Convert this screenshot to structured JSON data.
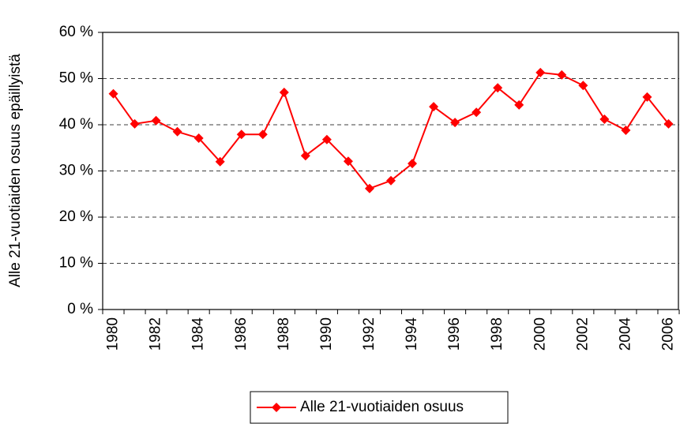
{
  "chart_data": {
    "type": "line",
    "y_label": "Alle 21-vuotiaiden osuus epäillyistä",
    "categories": [
      "1980",
      null,
      "1982",
      null,
      "1984",
      null,
      "1986",
      null,
      "1988",
      null,
      "1990",
      null,
      "1992",
      null,
      "1994",
      null,
      "1996",
      null,
      "1998",
      null,
      "2000",
      null,
      "2002",
      null,
      "2004",
      null,
      "2006"
    ],
    "series": [
      {
        "name": "Alle 21-vuotiaiden osuus",
        "color": "#ff0000",
        "values": [
          46.7,
          40.2,
          40.9,
          38.5,
          37.1,
          32.0,
          37.9,
          37.9,
          47.0,
          33.3,
          36.8,
          32.1,
          26.2,
          27.9,
          31.6,
          43.9,
          40.5,
          42.7,
          48.0,
          44.3,
          51.3,
          50.8,
          48.5,
          41.2,
          38.8,
          46.0,
          40.2
        ]
      }
    ],
    "ylim": [
      0,
      60
    ],
    "yticks": [
      {
        "value": 0,
        "label": "0 %"
      },
      {
        "value": 10,
        "label": "10 %"
      },
      {
        "value": 20,
        "label": "20 %"
      },
      {
        "value": 30,
        "label": "30 %"
      },
      {
        "value": 40,
        "label": "40 %"
      },
      {
        "value": 50,
        "label": "50 %"
      },
      {
        "value": 60,
        "label": "60 %"
      }
    ],
    "grid": true,
    "legend": "bottom"
  }
}
